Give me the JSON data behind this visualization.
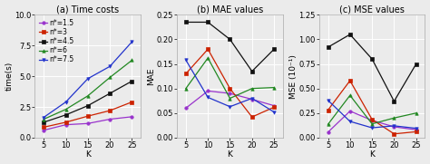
{
  "K": [
    5,
    10,
    15,
    20,
    25
  ],
  "legend_labels": [
    "n*=1.5",
    "n*=3",
    "n*=4.5",
    "n*=6",
    "n*=7.5"
  ],
  "colors": [
    "#9933cc",
    "#cc2200",
    "#111111",
    "#228822",
    "#2233cc"
  ],
  "markers": [
    "o",
    "s",
    "s",
    "^",
    "v"
  ],
  "time_data": [
    [
      0.6,
      1.05,
      1.15,
      1.5,
      1.7
    ],
    [
      0.85,
      1.25,
      1.75,
      2.2,
      2.9
    ],
    [
      1.25,
      1.85,
      2.6,
      3.6,
      4.6
    ],
    [
      1.5,
      2.3,
      3.4,
      4.9,
      6.3
    ],
    [
      1.65,
      2.9,
      4.8,
      5.8,
      7.8
    ]
  ],
  "time_ylim": [
    0,
    10.0
  ],
  "time_yticks": [
    0.0,
    2.5,
    5.0,
    7.5,
    10.0
  ],
  "time_ytick_labels": [
    "0.0",
    "2.5",
    "5.0",
    "7.5",
    "10.0"
  ],
  "mae_data": [
    [
      0.06,
      0.095,
      0.09,
      0.078,
      0.065
    ],
    [
      0.13,
      0.18,
      0.1,
      0.042,
      0.062
    ],
    [
      0.235,
      0.235,
      0.2,
      0.135,
      0.18
    ],
    [
      0.1,
      0.162,
      0.08,
      0.1,
      0.102
    ],
    [
      0.158,
      0.082,
      0.063,
      0.08,
      0.052
    ]
  ],
  "mae_ylim": [
    0,
    0.25
  ],
  "mae_yticks": [
    0.0,
    0.05,
    0.1,
    0.15,
    0.2,
    0.25
  ],
  "mae_ytick_labels": [
    "0.00",
    "0.05",
    "0.10",
    "0.15",
    "0.20",
    "0.25"
  ],
  "mse_data": [
    [
      0.055,
      0.27,
      0.175,
      0.11,
      0.08
    ],
    [
      0.28,
      0.58,
      0.185,
      0.038,
      0.06
    ],
    [
      0.92,
      1.05,
      0.8,
      0.37,
      0.75
    ],
    [
      0.135,
      0.43,
      0.14,
      0.2,
      0.25
    ],
    [
      0.38,
      0.165,
      0.1,
      0.12,
      0.095
    ]
  ],
  "mse_ylim": [
    0,
    1.25
  ],
  "mse_yticks": [
    0.0,
    0.25,
    0.5,
    0.75,
    1.0,
    1.25
  ],
  "mse_ytick_labels": [
    "0.00",
    "0.25",
    "0.50",
    "0.75",
    "1.00",
    "1.25"
  ],
  "title_a": "(a) Time costs",
  "title_b": "(b) MAE values",
  "title_c": "(c) MSE values",
  "xlabel": "K",
  "ylabel_a": "time(s)",
  "ylabel_b": "MAE",
  "ylabel_c": "MSE (10⁻¹)",
  "bg_color": "#ebebeb",
  "grid_color": "#ffffff",
  "title_fontsize": 7,
  "label_fontsize": 6.5,
  "tick_fontsize": 6,
  "legend_fontsize": 5.5,
  "linewidth": 0.9,
  "markersize": 2.5
}
